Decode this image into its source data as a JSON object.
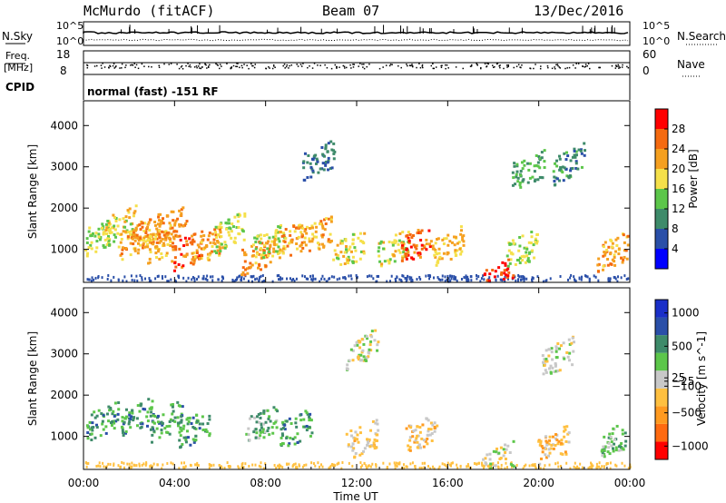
{
  "header": {
    "station": "McMurdo (fitACF)",
    "beam": "Beam 07",
    "date": "13/Dec/2016"
  },
  "top_panel": {
    "left_label": "N.Sky",
    "right_label": "N.Search",
    "left_ticks": [
      "10^5",
      "10^0"
    ],
    "right_ticks": [
      "10^5",
      "10^0"
    ]
  },
  "freq_panel": {
    "left_label_1": "Freq.",
    "left_label_2": "[MHz]",
    "left_ticks": [
      "18",
      "8"
    ],
    "right_ticks": [
      "60",
      "0"
    ],
    "right_label": "Nave",
    "cpid_label": "CPID",
    "cpid_text": "normal (fast) -151 RF"
  },
  "colors": {
    "power": [
      "#0000ff",
      "#2a4fa8",
      "#3e8b6a",
      "#5cc64a",
      "#f5e04a",
      "#f5a020",
      "#f56a10",
      "#ff0000"
    ],
    "velocity": [
      "#ff0000",
      "#ff6a10",
      "#ff9a20",
      "#ffc040",
      "#c8c8c8",
      "#5cc64a",
      "#3e8b6a",
      "#2a4fa8",
      "#1a2fc8"
    ]
  },
  "chart_data": [
    {
      "type": "heatmap",
      "title": "",
      "xlabel": "Time UT",
      "ylabel": "Slant Range [km]",
      "x_ticks": [
        "00:00",
        "04:00",
        "08:00",
        "12:00",
        "16:00",
        "20:00",
        "00:00"
      ],
      "y_ticks": [
        1000,
        2000,
        3000,
        4000
      ],
      "ylim": [
        200,
        4600
      ],
      "colorbar": {
        "label": "Power [dB]",
        "ticks": [
          4,
          8,
          12,
          16,
          20,
          24,
          28
        ],
        "range": [
          0,
          32
        ]
      },
      "blobs": [
        {
          "t": 0.5,
          "r": 1300,
          "v": 16
        },
        {
          "t": 1.6,
          "r": 1600,
          "v": 18
        },
        {
          "t": 2.2,
          "r": 1250,
          "v": 22
        },
        {
          "t": 2.8,
          "r": 1450,
          "v": 24
        },
        {
          "t": 3.3,
          "r": 1150,
          "v": 20
        },
        {
          "t": 3.8,
          "r": 1600,
          "v": 24
        },
        {
          "t": 4.5,
          "r": 1000,
          "v": 26
        },
        {
          "t": 5.4,
          "r": 1100,
          "v": 22
        },
        {
          "t": 7.6,
          "r": 850,
          "v": 24
        },
        {
          "t": 6.4,
          "r": 1450,
          "v": 16
        },
        {
          "t": 8.1,
          "r": 1150,
          "v": 16
        },
        {
          "t": 8.9,
          "r": 1200,
          "v": 22
        },
        {
          "t": 10.2,
          "r": 1350,
          "v": 22
        },
        {
          "t": 11.6,
          "r": 1000,
          "v": 18
        },
        {
          "t": 13.6,
          "r": 1050,
          "v": 18
        },
        {
          "t": 14.6,
          "r": 1150,
          "v": 26
        },
        {
          "t": 16.0,
          "r": 1100,
          "v": 20
        },
        {
          "t": 19.2,
          "r": 1000,
          "v": 16
        },
        {
          "t": 23.2,
          "r": 950,
          "v": 22
        },
        {
          "t": 18.2,
          "r": 330,
          "v": 30
        },
        {
          "t": 10.3,
          "r": 3200,
          "v": 8
        },
        {
          "t": 19.5,
          "r": 2950,
          "v": 12
        },
        {
          "t": 21.3,
          "r": 3100,
          "v": 10
        }
      ]
    },
    {
      "type": "heatmap",
      "title": "",
      "xlabel": "Time UT",
      "ylabel": "Slant Range [km]",
      "x_ticks": [
        "00:00",
        "04:00",
        "08:00",
        "12:00",
        "16:00",
        "20:00",
        "00:00"
      ],
      "y_ticks": [
        1000,
        2000,
        3000,
        4000
      ],
      "ylim": [
        200,
        4600
      ],
      "colorbar": {
        "label": "Velocity [m s^-1]",
        "ticks": [
          -1000,
          -500,
          -100,
          -25,
          25,
          500,
          1000
        ],
        "tick_labels": [
          "−1000",
          "−500",
          "−100",
          "−25",
          "25",
          "500",
          "1000"
        ],
        "range": [
          -1200,
          1200
        ]
      },
      "blobs": [
        {
          "t": 0.8,
          "r": 1400,
          "v": 450
        },
        {
          "t": 2.3,
          "r": 1500,
          "v": 450
        },
        {
          "t": 3.6,
          "r": 1400,
          "v": 450
        },
        {
          "t": 4.8,
          "r": 1200,
          "v": 450
        },
        {
          "t": 7.8,
          "r": 1300,
          "v": 300
        },
        {
          "t": 9.3,
          "r": 1200,
          "v": 450
        },
        {
          "t": 12.2,
          "r": 950,
          "v": -150
        },
        {
          "t": 14.8,
          "r": 1100,
          "v": -200
        },
        {
          "t": 20.6,
          "r": 800,
          "v": -300
        },
        {
          "t": 23.4,
          "r": 1000,
          "v": 300
        },
        {
          "t": 18.2,
          "r": 420,
          "v": 0
        },
        {
          "t": 12.2,
          "r": 3150,
          "v": 0
        },
        {
          "t": 20.8,
          "r": 2950,
          "v": 0
        }
      ]
    }
  ]
}
